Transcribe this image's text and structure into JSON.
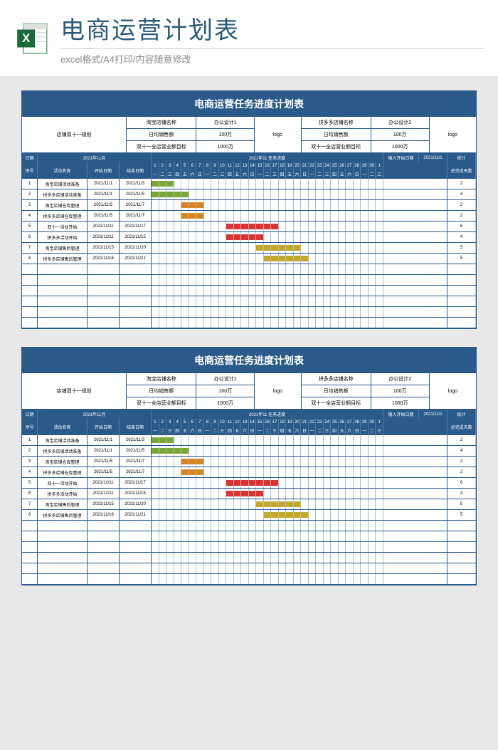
{
  "header": {
    "main_title": "电商运营计划表",
    "sub_title": "excel格式/A4打印/内容随意修改"
  },
  "sheet": {
    "title": "电商运营任务进度计划表",
    "info": {
      "plan_label": "店铺双十一规划",
      "tb_name_label": "淘宝店铺名称",
      "tb_name_value": "办公设计1",
      "daily_sales_label": "日均销售额",
      "daily_sales_value": "100万",
      "target_label": "双十一全店营业额目标",
      "target_value": "1000万",
      "logo_label": "logo",
      "pdd_name_label": "拼多多店铺名称",
      "pdd_name_value": "办公设计2",
      "daily_sales_value2": "100万",
      "target_value2": "1000万"
    },
    "gantt_header": {
      "date_label": "日期",
      "month_label": "2021年11月",
      "progress_label": "2021年11 任务进度",
      "input_start_label": "输入开始日期",
      "input_start_value": "2021/11/1",
      "stats_label": "统计",
      "seq_label": "序号",
      "activity_label": "活动名称",
      "start_label": "开始日期",
      "end_label": "结束日期",
      "total_days_label": "总完成天数"
    },
    "days": [
      "1",
      "2",
      "3",
      "4",
      "5",
      "6",
      "7",
      "8",
      "9",
      "10",
      "11",
      "12",
      "13",
      "14",
      "15",
      "16",
      "17",
      "18",
      "19",
      "20",
      "21",
      "22",
      "23",
      "24",
      "25",
      "26",
      "27",
      "28",
      "29",
      "30",
      "1"
    ],
    "weekdays": [
      "一",
      "二",
      "三",
      "四",
      "五",
      "六",
      "日",
      "一",
      "二",
      "三",
      "四",
      "五",
      "六",
      "日",
      "一",
      "二",
      "三",
      "四",
      "五",
      "六",
      "日",
      "一",
      "二",
      "三",
      "四",
      "五",
      "六",
      "日",
      "一",
      "二",
      "三"
    ],
    "tasks": [
      {
        "seq": "1",
        "name": "淘宝店铺活动准备",
        "start": "2021/11/1",
        "end": "2021/11/3",
        "bar_start": 1,
        "bar_end": 3,
        "color": "#7ba833",
        "days": "2"
      },
      {
        "seq": "2",
        "name": "拼多多店铺活动准备",
        "start": "2021/11/1",
        "end": "2021/11/5",
        "bar_start": 1,
        "bar_end": 5,
        "color": "#7ba833",
        "days": "4"
      },
      {
        "seq": "3",
        "name": "淘宝店铺仓库整理",
        "start": "2021/11/5",
        "end": "2021/11/7",
        "bar_start": 5,
        "bar_end": 7,
        "color": "#d8851f",
        "days": "2"
      },
      {
        "seq": "4",
        "name": "拼多多店铺仓库整理",
        "start": "2021/11/5",
        "end": "2021/11/7",
        "bar_start": 5,
        "bar_end": 7,
        "color": "#d8851f",
        "days": "2"
      },
      {
        "seq": "5",
        "name": "双十一活动开始",
        "start": "2021/11/11",
        "end": "2021/11/17",
        "bar_start": 11,
        "bar_end": 17,
        "color": "#e03030",
        "days": "6"
      },
      {
        "seq": "6",
        "name": "拼多多活动开始",
        "start": "2021/11/11",
        "end": "2021/11/15",
        "bar_start": 11,
        "bar_end": 15,
        "color": "#e03030",
        "days": "4"
      },
      {
        "seq": "7",
        "name": "淘宝店铺售后管理",
        "start": "2021/11/15",
        "end": "2021/11/20",
        "bar_start": 15,
        "bar_end": 20,
        "color": "#c4a820",
        "days": "5"
      },
      {
        "seq": "8",
        "name": "拼多多店铺售后管理",
        "start": "2021/11/16",
        "end": "2021/11/21",
        "bar_start": 16,
        "bar_end": 21,
        "color": "#c4a820",
        "days": "5"
      }
    ],
    "empty_rows": 6
  },
  "colors": {
    "primary": "#2a5a8a",
    "header_text": "#2a5a7a"
  }
}
